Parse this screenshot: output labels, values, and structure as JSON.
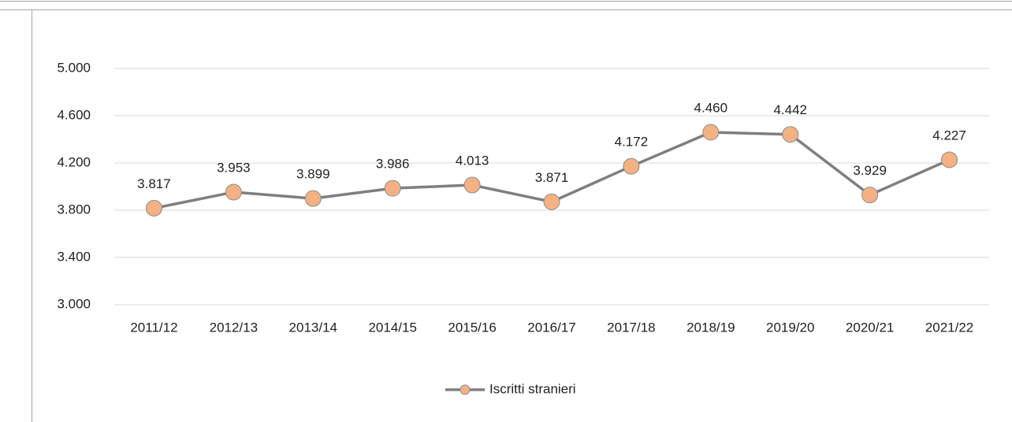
{
  "chart_data": {
    "type": "line",
    "categories": [
      "2011/12",
      "2012/13",
      "2013/14",
      "2014/15",
      "2015/16",
      "2016/17",
      "2017/18",
      "2018/19",
      "2019/20",
      "2020/21",
      "2021/22"
    ],
    "series": [
      {
        "name": "Iscritti stranieri",
        "color": "#7f7f7f",
        "marker_color": "#f4b183",
        "values": [
          3817,
          3953,
          3899,
          3986,
          4013,
          3871,
          4172,
          4460,
          4442,
          3929,
          4227
        ],
        "value_labels": [
          "3.817",
          "3.953",
          "3.899",
          "3.986",
          "4.013",
          "3.871",
          "4.172",
          "4.460",
          "4.442",
          "3.929",
          "4.227"
        ]
      }
    ],
    "ylim": [
      3000,
      5000
    ],
    "yticks": [
      {
        "value": 3000,
        "label": "3.000"
      },
      {
        "value": 3400,
        "label": "3.400"
      },
      {
        "value": 3800,
        "label": "3.800"
      },
      {
        "value": 4200,
        "label": "4.200"
      },
      {
        "value": 4600,
        "label": "4.600"
      },
      {
        "value": 5000,
        "label": "5.000"
      }
    ],
    "grid": true,
    "legend": "bottom"
  }
}
